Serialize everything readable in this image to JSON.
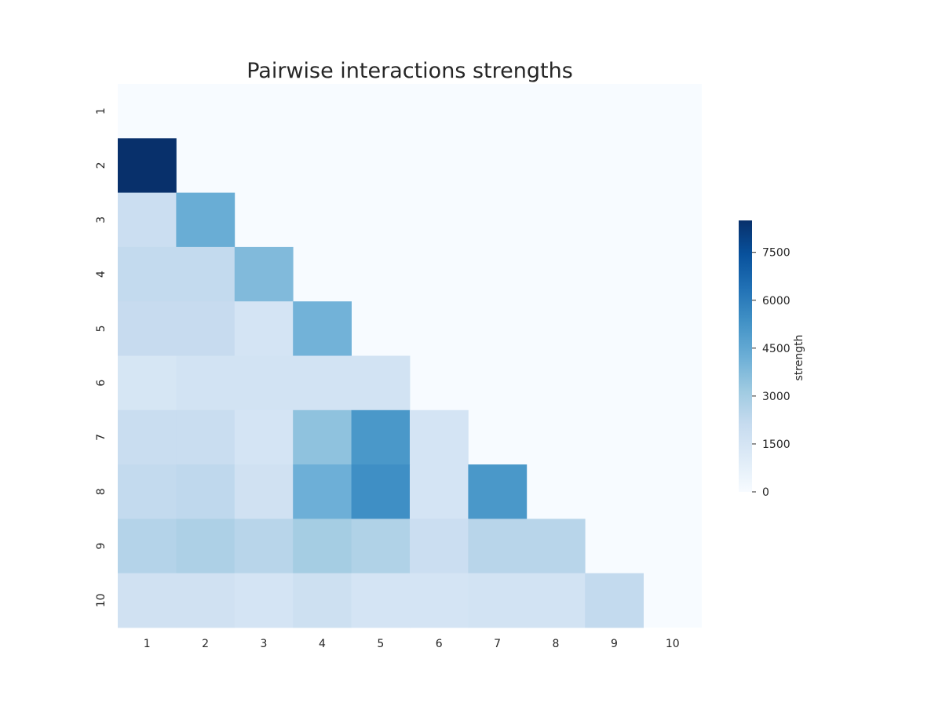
{
  "chart_data": {
    "type": "heatmap",
    "title": "Pairwise interactions strengths",
    "x_labels": [
      "1",
      "2",
      "3",
      "4",
      "5",
      "6",
      "7",
      "8",
      "9",
      "10"
    ],
    "y_labels": [
      "1",
      "2",
      "3",
      "4",
      "5",
      "6",
      "7",
      "8",
      "9",
      "10"
    ],
    "mask": "upper triangle including diagonal",
    "values": [
      [
        null,
        null,
        null,
        null,
        null,
        null,
        null,
        null,
        null,
        null
      ],
      [
        8500,
        null,
        null,
        null,
        null,
        null,
        null,
        null,
        null,
        null
      ],
      [
        1900,
        4300,
        null,
        null,
        null,
        null,
        null,
        null,
        null,
        null
      ],
      [
        2200,
        2200,
        3800,
        null,
        null,
        null,
        null,
        null,
        null,
        null
      ],
      [
        2100,
        2100,
        1500,
        4100,
        null,
        null,
        null,
        null,
        null,
        null
      ],
      [
        1400,
        1600,
        1600,
        1600,
        1600,
        null,
        null,
        null,
        null,
        null
      ],
      [
        2000,
        2000,
        1500,
        3500,
        5100,
        1500,
        null,
        null,
        null,
        null
      ],
      [
        2200,
        2300,
        1700,
        4200,
        5400,
        1500,
        5100,
        null,
        null,
        null
      ],
      [
        2600,
        2800,
        2500,
        3000,
        2700,
        1900,
        2500,
        2500,
        null,
        null
      ],
      [
        1700,
        1700,
        1500,
        1800,
        1500,
        1500,
        1600,
        1600,
        2200,
        null
      ]
    ],
    "colorbar": {
      "label": "strength",
      "ticks": [
        "0",
        "1500",
        "3000",
        "4500",
        "6000",
        "7500"
      ],
      "tick_values": [
        0,
        1500,
        3000,
        4500,
        6000,
        7500
      ],
      "vmin": 0,
      "vmax": 8500,
      "colormap": "Blues"
    },
    "masked_color": "#f7fbff",
    "grid": false
  }
}
